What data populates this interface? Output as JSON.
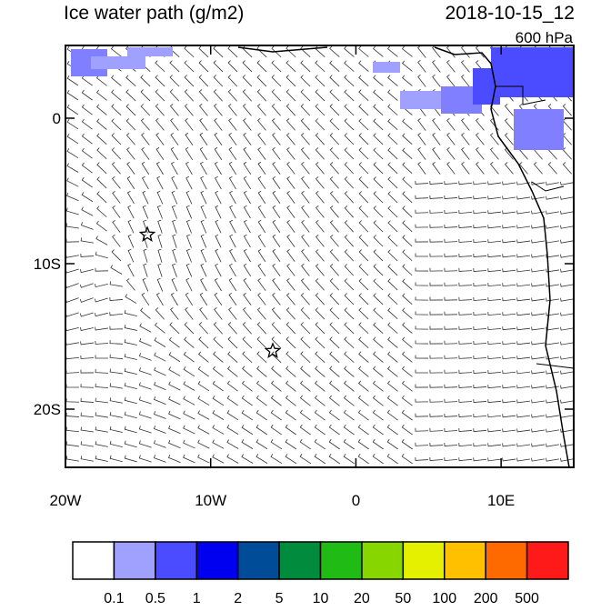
{
  "header": {
    "title": "Ice water path (g/m2)",
    "time": "2018-10-15_12",
    "level": "600 hPa"
  },
  "map": {
    "lonlim": [
      -20,
      15
    ],
    "latlim": [
      -24,
      5
    ],
    "lon_ticks": [
      {
        "value": -20,
        "label": "20W"
      },
      {
        "value": -10,
        "label": "10W"
      },
      0,
      {
        "value": 10,
        "label": "10E"
      }
    ],
    "lat_ticks": [
      0,
      {
        "value": -10,
        "label": "10S"
      },
      {
        "value": -20,
        "label": "20S"
      }
    ]
  },
  "colorbar": {
    "colors": [
      "#ffffff",
      "#a0a0ff",
      "#4b4bff",
      "#0000f0",
      "#004c99",
      "#008c3c",
      "#20bb14",
      "#88d600",
      "#e4f000",
      "#ffc000",
      "#ff6a00",
      "#ff1a1a"
    ],
    "labels": [
      "0.1",
      "0.5",
      "1",
      "2",
      "5",
      "10",
      "20",
      "50",
      "100",
      "200",
      "500"
    ]
  }
}
